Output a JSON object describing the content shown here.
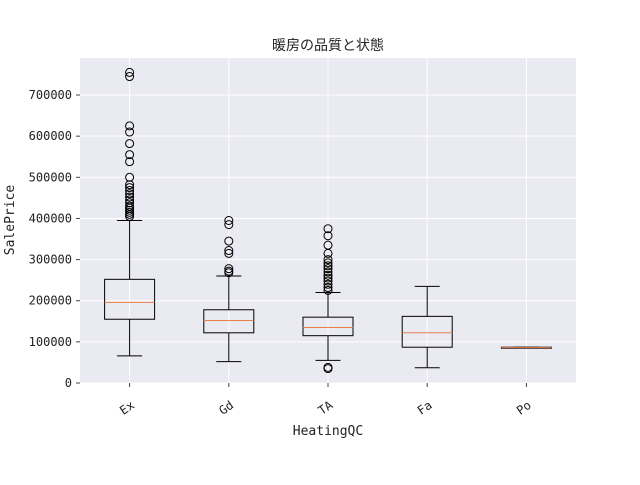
{
  "chart_data": {
    "type": "box",
    "title": "暖房の品質と状態",
    "xlabel": "HeatingQC",
    "ylabel": "SalePrice",
    "ylim": [
      0,
      790000
    ],
    "yticks": [
      0,
      100000,
      200000,
      300000,
      400000,
      500000,
      600000,
      700000
    ],
    "ytick_labels": [
      "0",
      "100000",
      "200000",
      "300000",
      "400000",
      "500000",
      "600000",
      "700000"
    ],
    "grid": true,
    "categories": [
      "Ex",
      "Gd",
      "TA",
      "Fa",
      "Po"
    ],
    "boxes": [
      {
        "category": "Ex",
        "whisker_low": 66000,
        "q1": 155000,
        "median": 196000,
        "q3": 252000,
        "whisker_high": 395000,
        "outliers": [
          405000,
          410000,
          415000,
          420000,
          425000,
          430000,
          438000,
          445000,
          452000,
          460000,
          468000,
          475000,
          482000,
          500000,
          538000,
          555000,
          582000,
          610000,
          625000,
          745000,
          755000
        ]
      },
      {
        "category": "Gd",
        "whisker_low": 52000,
        "q1": 122000,
        "median": 152000,
        "q3": 178000,
        "whisker_high": 260000,
        "outliers": [
          268000,
          272000,
          278000,
          315000,
          322000,
          345000,
          385000,
          395000
        ]
      },
      {
        "category": "TA",
        "whisker_low": 55000,
        "q1": 115000,
        "median": 135000,
        "q3": 160000,
        "whisker_high": 220000,
        "outliers": [
          35000,
          38000,
          225000,
          232000,
          240000,
          248000,
          255000,
          262000,
          270000,
          278000,
          285000,
          292000,
          300000,
          315000,
          335000,
          358000,
          375000
        ]
      },
      {
        "category": "Fa",
        "whisker_low": 37000,
        "q1": 87000,
        "median": 122000,
        "q3": 162000,
        "whisker_high": 235000,
        "outliers": []
      },
      {
        "category": "Po",
        "whisker_low": 85000,
        "q1": 85000,
        "median": 86000,
        "q3": 87000,
        "whisker_high": 87000,
        "outliers": []
      }
    ],
    "colors": {
      "plot_bg": "#eaeaf2",
      "grid": "#ffffff",
      "box": "#000000",
      "median": "#e8804c"
    }
  }
}
